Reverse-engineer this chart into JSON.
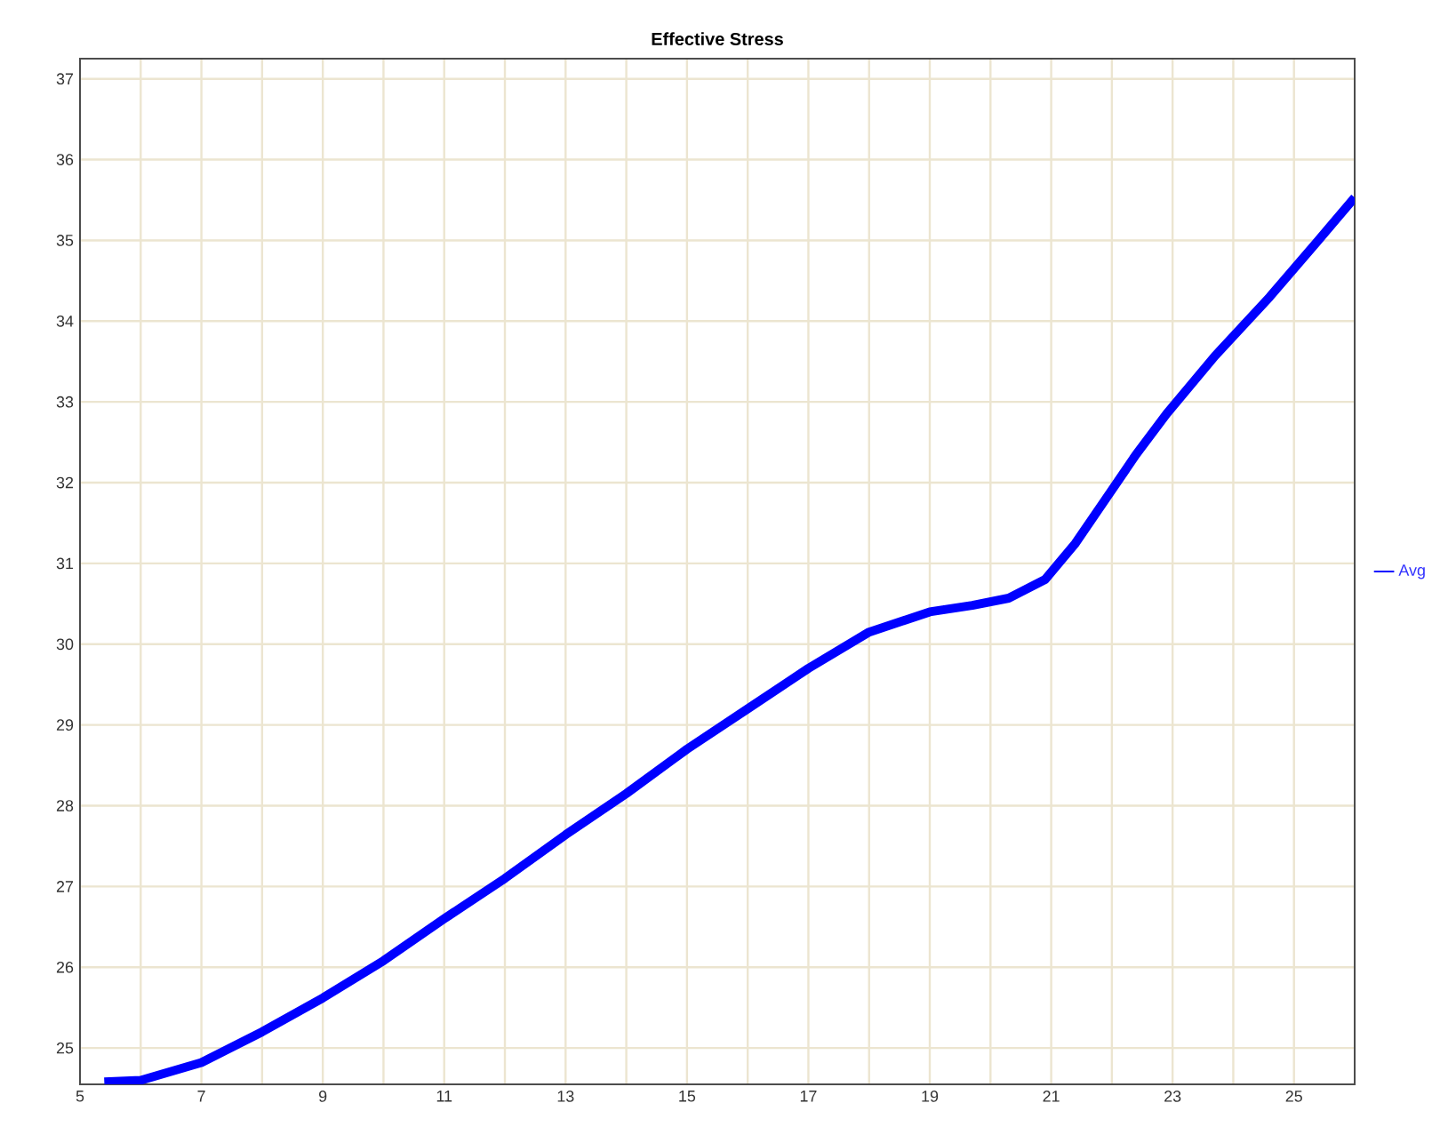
{
  "chart_data": {
    "type": "line",
    "title": "Effective Stress",
    "xlim": [
      5,
      26
    ],
    "xticks": [
      5,
      7,
      9,
      11,
      13,
      15,
      17,
      19,
      21,
      23,
      25
    ],
    "ylim": [
      24.55,
      37.25
    ],
    "yticks": [
      25,
      26,
      27,
      28,
      29,
      30,
      31,
      32,
      33,
      34,
      35,
      36,
      37
    ],
    "grid": true,
    "legend": "right",
    "marker": "none",
    "line_style": "solid",
    "x": [
      5.4,
      6.0,
      7.0,
      8.0,
      9.0,
      10.0,
      11.0,
      12.0,
      13.0,
      14.0,
      15.0,
      16.0,
      17.0,
      18.0,
      19.0,
      19.7,
      20.3,
      20.9,
      21.4,
      21.9,
      22.4,
      22.9,
      23.7,
      24.6,
      25.4,
      26.0
    ],
    "series": [
      {
        "name": "Avg",
        "color": "#0000ff",
        "values": [
          24.58,
          24.6,
          24.82,
          25.2,
          25.62,
          26.08,
          26.6,
          27.1,
          27.64,
          28.15,
          28.7,
          29.2,
          29.7,
          30.15,
          30.4,
          30.48,
          30.57,
          30.8,
          31.25,
          31.8,
          32.35,
          32.85,
          33.57,
          34.3,
          35.0,
          35.53
        ]
      }
    ]
  }
}
